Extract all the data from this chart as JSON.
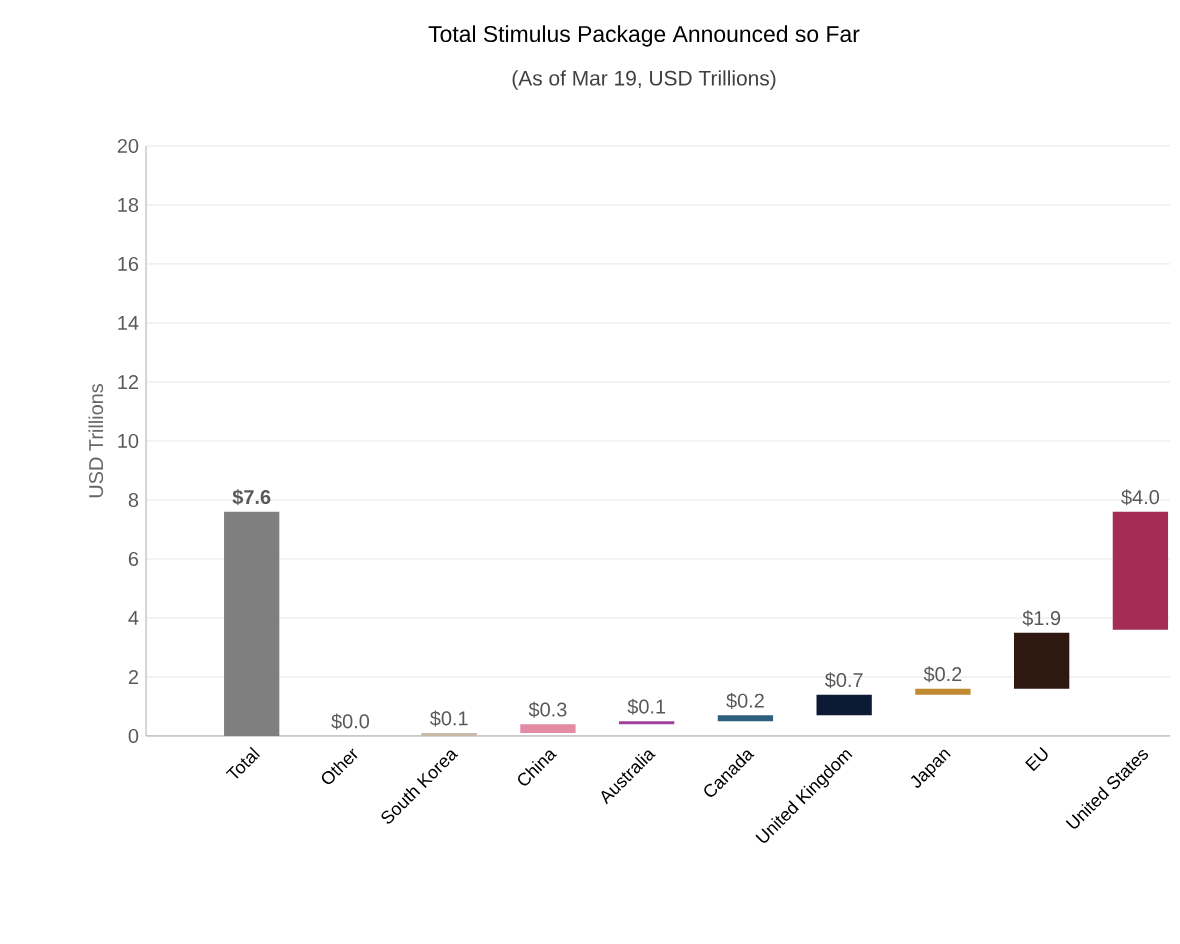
{
  "chart_data": {
    "type": "bar",
    "title": "Total Stimulus Package Announced so Far",
    "subtitle": "(As of Mar 19, USD Trillions)",
    "ylabel": "USD Trillions",
    "categories": [
      "Total",
      "Other",
      "South Korea",
      "China",
      "Australia",
      "Canada",
      "United Kingdom",
      "Japan",
      "EU",
      "United States"
    ],
    "values": [
      7.6,
      0.0,
      0.1,
      0.3,
      0.1,
      0.2,
      0.7,
      0.2,
      1.9,
      4.0
    ],
    "base": [
      0,
      null,
      0,
      0.1,
      0.4,
      0.5,
      0.7,
      1.4,
      1.6,
      3.6
    ],
    "colors": [
      "#7f7f7f",
      "#c8b8a8",
      "#c8b8a8",
      "#e38aa5",
      "#a0409a",
      "#2f5f7f",
      "#0d1a33",
      "#c08a30",
      "#2e1810",
      "#a52c54"
    ],
    "value_labels": [
      "**$7.6**",
      "$0.0",
      "$0.1",
      "$0.3",
      "$0.1",
      "$0.2",
      "$0.7",
      "$0.2",
      "$1.9",
      "$4.0"
    ],
    "ylim": [
      0,
      20
    ],
    "yticks": [
      0,
      2,
      4,
      6,
      8,
      10,
      12,
      14,
      16,
      18,
      20
    ],
    "grid": "y"
  }
}
